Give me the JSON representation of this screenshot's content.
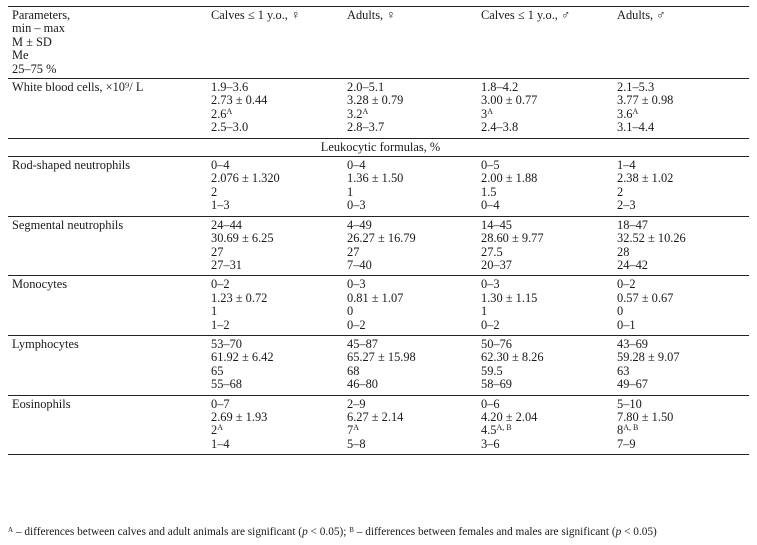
{
  "header": {
    "param_lines": [
      "Parameters,",
      "min – max",
      "M ± SD",
      "Me",
      "25–75 %"
    ],
    "columns": [
      "Calves ≤ 1 y.o., ♀",
      "Adults, ♀",
      "Calves ≤ 1 y.o., ♂",
      "Adults, ♂"
    ]
  },
  "wbc": {
    "label": "White blood cells, ×10⁹/ L",
    "cells": [
      {
        "range": "1.9–3.6",
        "mean": "2.73 ± 0.44",
        "me": "2.6",
        "me_sup": "A",
        "iqr": "2.5–3.0"
      },
      {
        "range": "2.0–5.1",
        "mean": "3.28 ± 0.79",
        "me": "3.2",
        "me_sup": "A",
        "iqr": "2.8–3.7"
      },
      {
        "range": "1.8–4.2",
        "mean": "3.00 ± 0.77",
        "me": "3",
        "me_sup": "A",
        "iqr": "2.4–3.8"
      },
      {
        "range": "2.1–5.3",
        "mean": "3.77 ± 0.98",
        "me": "3.6",
        "me_sup": "A",
        "iqr": "3.1–4.4"
      }
    ]
  },
  "section_title": "Leukocytic formulas, %",
  "rows": [
    {
      "label": "Rod-shaped neutrophils",
      "cells": [
        {
          "range": "0–4",
          "mean": "2.076 ± 1.320",
          "me": "2",
          "me_sup": "",
          "iqr": "1–3"
        },
        {
          "range": "0–4",
          "mean": "1.36 ± 1.50",
          "me": "1",
          "me_sup": "",
          "iqr": "0–3"
        },
        {
          "range": "0–5",
          "mean": "2.00 ± 1.88",
          "me": "1.5",
          "me_sup": "",
          "iqr": "0–4"
        },
        {
          "range": "1–4",
          "mean": "2.38 ± 1.02",
          "me": "2",
          "me_sup": "",
          "iqr": "2–3"
        }
      ]
    },
    {
      "label": "Segmental neutrophils",
      "cells": [
        {
          "range": "24–44",
          "mean": "30.69 ± 6.25",
          "me": "27",
          "me_sup": "",
          "iqr": "27–31"
        },
        {
          "range": "4–49",
          "mean": "26.27 ± 16.79",
          "me": "27",
          "me_sup": "",
          "iqr": "7–40"
        },
        {
          "range": "14–45",
          "mean": "28.60 ± 9.77",
          "me": "27.5",
          "me_sup": "",
          "iqr": "20–37"
        },
        {
          "range": "18–47",
          "mean": "32.52 ± 10.26",
          "me": "28",
          "me_sup": "",
          "iqr": "24–42"
        }
      ]
    },
    {
      "label": "Monocytes",
      "cells": [
        {
          "range": "0–2",
          "mean": "1.23 ± 0.72",
          "me": "1",
          "me_sup": "",
          "iqr": "1–2"
        },
        {
          "range": "0–3",
          "mean": "0.81 ± 1.07",
          "me": "0",
          "me_sup": "",
          "iqr": "0–2"
        },
        {
          "range": "0–3",
          "mean": "1.30 ± 1.15",
          "me": "1",
          "me_sup": "",
          "iqr": "0–2"
        },
        {
          "range": "0–2",
          "mean": "0.57 ± 0.67",
          "me": "0",
          "me_sup": "",
          "iqr": "0–1"
        }
      ]
    },
    {
      "label": "Lymphocytes",
      "cells": [
        {
          "range": "53–70",
          "mean": "61.92 ± 6.42",
          "me": "65",
          "me_sup": "",
          "iqr": "55–68"
        },
        {
          "range": "45–87",
          "mean": "65.27 ± 15.98",
          "me": "68",
          "me_sup": "",
          "iqr": "46–80"
        },
        {
          "range": "50–76",
          "mean": "62.30 ± 8.26",
          "me": "59.5",
          "me_sup": "",
          "iqr": "58–69"
        },
        {
          "range": "43–69",
          "mean": "59.28 ± 9.07",
          "me": "63",
          "me_sup": "",
          "iqr": "49–67"
        }
      ]
    },
    {
      "label": "Eosinophils",
      "cells": [
        {
          "range": "0–7",
          "mean": "2.69 ± 1.93",
          "me": "2",
          "me_sup": "A",
          "iqr": "1–4"
        },
        {
          "range": "2–9",
          "mean": "6.27 ± 2.14",
          "me": "7",
          "me_sup": "A",
          "iqr": "5–8"
        },
        {
          "range": "0–6",
          "mean": "4.20 ± 2.04",
          "me": "4.5",
          "me_sup": "A, B",
          "iqr": "3–6"
        },
        {
          "range": "5–10",
          "mean": "7.80 ± 1.50",
          "me": "8",
          "me_sup": "A, B",
          "iqr": "7–9"
        }
      ]
    }
  ],
  "footnote": {
    "a_mark": "A",
    "a_text": " – differences between calves and adult animals are significant (",
    "a_p": "p",
    "a_close": " < 0.05); ",
    "b_mark": "B",
    "b_text": " – differences between females and males are significant (",
    "b_p": "p",
    "b_close": " < 0.05)"
  }
}
